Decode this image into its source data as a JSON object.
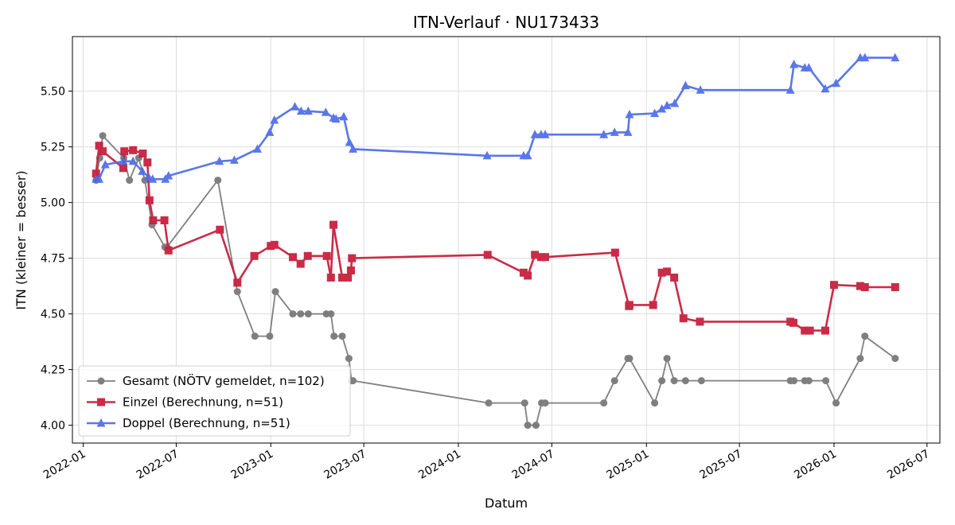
{
  "chart_data": {
    "type": "line",
    "title": "ITN-Verlauf · NU173433",
    "xlabel": "Datum",
    "ylabel": "ITN  (kleiner = besser)",
    "ylim": [
      3.92,
      5.745
    ],
    "xlim": [
      "2021-12-11",
      "2026-07-26"
    ],
    "yticks": [
      "4.00",
      "4.25",
      "4.50",
      "4.75",
      "5.00",
      "5.25",
      "5.50"
    ],
    "xticks": [
      "2022-01",
      "2022-07",
      "2023-01",
      "2023-07",
      "2024-01",
      "2024-07",
      "2025-01",
      "2025-07",
      "2026-01",
      "2026-07"
    ],
    "grid": true,
    "legend_position": "lower-left",
    "series": [
      {
        "name": "Gesamt (NÖTV gemeldet, n=102)",
        "color": "#555555",
        "marker": "circle",
        "points": [
          [
            "2022-01-26",
            5.1
          ],
          [
            "2022-02-02",
            5.2
          ],
          [
            "2022-02-08",
            5.3
          ],
          [
            "2022-03-21",
            5.2
          ],
          [
            "2022-04-01",
            5.1
          ],
          [
            "2022-04-19",
            5.2
          ],
          [
            "2022-05-01",
            5.1
          ],
          [
            "2022-05-15",
            4.9
          ],
          [
            "2022-06-09",
            4.8
          ],
          [
            "2022-06-13",
            4.8
          ],
          [
            "2022-09-20",
            5.1
          ],
          [
            "2022-10-28",
            4.6
          ],
          [
            "2022-12-01",
            4.4
          ],
          [
            "2022-12-30",
            4.4
          ],
          [
            "2023-01-10",
            4.6
          ],
          [
            "2023-02-13",
            4.5
          ],
          [
            "2023-02-28",
            4.5
          ],
          [
            "2023-03-15",
            4.5
          ],
          [
            "2023-04-19",
            4.5
          ],
          [
            "2023-04-28",
            4.5
          ],
          [
            "2023-05-04",
            4.4
          ],
          [
            "2023-05-20",
            4.4
          ],
          [
            "2023-06-02",
            4.3
          ],
          [
            "2023-06-07",
            4.2
          ],
          [
            "2023-06-10",
            4.2
          ],
          [
            "2024-02-29",
            4.1
          ],
          [
            "2024-05-09",
            4.1
          ],
          [
            "2024-05-15",
            4.0
          ],
          [
            "2024-05-31",
            4.0
          ],
          [
            "2024-06-11",
            4.1
          ],
          [
            "2024-06-18",
            4.1
          ],
          [
            "2024-10-10",
            4.1
          ],
          [
            "2024-10-31",
            4.2
          ],
          [
            "2024-11-26",
            4.3
          ],
          [
            "2024-11-29",
            4.3
          ],
          [
            "2025-01-17",
            4.1
          ],
          [
            "2025-01-31",
            4.2
          ],
          [
            "2025-02-10",
            4.3
          ],
          [
            "2025-02-24",
            4.2
          ],
          [
            "2025-03-18",
            4.2
          ],
          [
            "2025-04-18",
            4.2
          ],
          [
            "2025-10-08",
            4.2
          ],
          [
            "2025-10-15",
            4.2
          ],
          [
            "2025-11-05",
            4.2
          ],
          [
            "2025-11-13",
            4.2
          ],
          [
            "2025-12-16",
            4.2
          ],
          [
            "2026-01-05",
            4.1
          ],
          [
            "2026-02-21",
            4.3
          ],
          [
            "2026-03-02",
            4.4
          ],
          [
            "2026-04-30",
            4.3
          ]
        ]
      },
      {
        "name": "Einzel (Berechnung, n=51)",
        "color": "#c8203e",
        "marker": "square",
        "points": [
          [
            "2022-01-26",
            5.13
          ],
          [
            "2022-02-01",
            5.255
          ],
          [
            "2022-02-08",
            5.23
          ],
          [
            "2022-03-20",
            5.155
          ],
          [
            "2022-03-22",
            5.23
          ],
          [
            "2022-04-08",
            5.235
          ],
          [
            "2022-04-27",
            5.22
          ],
          [
            "2022-05-06",
            5.18
          ],
          [
            "2022-05-10",
            5.01
          ],
          [
            "2022-05-17",
            4.92
          ],
          [
            "2022-06-08",
            4.92
          ],
          [
            "2022-06-16",
            4.785
          ],
          [
            "2022-09-24",
            4.878
          ],
          [
            "2022-10-28",
            4.64
          ],
          [
            "2022-11-30",
            4.76
          ],
          [
            "2023-01-01",
            4.805
          ],
          [
            "2023-01-08",
            4.81
          ],
          [
            "2023-02-13",
            4.755
          ],
          [
            "2023-02-28",
            4.725
          ],
          [
            "2023-03-14",
            4.76
          ],
          [
            "2023-04-20",
            4.76
          ],
          [
            "2023-04-28",
            4.663
          ],
          [
            "2023-05-03",
            4.9
          ],
          [
            "2023-05-20",
            4.663
          ],
          [
            "2023-05-31",
            4.663
          ],
          [
            "2023-06-06",
            4.695
          ],
          [
            "2023-06-08",
            4.75
          ],
          [
            "2024-02-27",
            4.765
          ],
          [
            "2024-05-07",
            4.685
          ],
          [
            "2024-05-15",
            4.672
          ],
          [
            "2024-05-29",
            4.765
          ],
          [
            "2024-06-10",
            4.755
          ],
          [
            "2024-06-18",
            4.755
          ],
          [
            "2024-11-01",
            4.775
          ],
          [
            "2024-11-28",
            4.535
          ],
          [
            "2024-11-29",
            4.54
          ],
          [
            "2025-01-14",
            4.54
          ],
          [
            "2025-01-31",
            4.685
          ],
          [
            "2025-02-10",
            4.69
          ],
          [
            "2025-02-24",
            4.663
          ],
          [
            "2025-03-14",
            4.48
          ],
          [
            "2025-04-15",
            4.465
          ],
          [
            "2025-10-08",
            4.465
          ],
          [
            "2025-10-14",
            4.46
          ],
          [
            "2025-11-05",
            4.425
          ],
          [
            "2025-11-15",
            4.425
          ],
          [
            "2025-12-15",
            4.425
          ],
          [
            "2026-01-01",
            4.63
          ],
          [
            "2026-02-21",
            4.625
          ],
          [
            "2026-03-02",
            4.62
          ],
          [
            "2026-04-30",
            4.62
          ]
        ]
      },
      {
        "name": "Doppel (Berechnung, n=51)",
        "color": "#4d6ce8",
        "marker": "triangle",
        "points": [
          [
            "2022-01-26",
            5.105
          ],
          [
            "2022-02-01",
            5.105
          ],
          [
            "2022-02-13",
            5.17
          ],
          [
            "2022-03-20",
            5.185
          ],
          [
            "2022-04-08",
            5.185
          ],
          [
            "2022-04-26",
            5.14
          ],
          [
            "2022-05-08",
            5.115
          ],
          [
            "2022-05-16",
            5.105
          ],
          [
            "2022-06-10",
            5.105
          ],
          [
            "2022-06-16",
            5.12
          ],
          [
            "2022-09-23",
            5.185
          ],
          [
            "2022-10-22",
            5.19
          ],
          [
            "2022-12-06",
            5.24
          ],
          [
            "2022-12-30",
            5.315
          ],
          [
            "2023-01-08",
            5.37
          ],
          [
            "2023-02-17",
            5.43
          ],
          [
            "2023-03-01",
            5.41
          ],
          [
            "2023-03-15",
            5.41
          ],
          [
            "2023-04-18",
            5.405
          ],
          [
            "2023-05-03",
            5.38
          ],
          [
            "2023-05-08",
            5.375
          ],
          [
            "2023-05-23",
            5.385
          ],
          [
            "2023-06-03",
            5.27
          ],
          [
            "2023-06-10",
            5.24
          ],
          [
            "2024-02-26",
            5.21
          ],
          [
            "2024-05-07",
            5.21
          ],
          [
            "2024-05-15",
            5.21
          ],
          [
            "2024-05-29",
            5.305
          ],
          [
            "2024-06-10",
            5.305
          ],
          [
            "2024-06-18",
            5.305
          ],
          [
            "2024-10-10",
            5.305
          ],
          [
            "2024-10-31",
            5.315
          ],
          [
            "2024-11-26",
            5.315
          ],
          [
            "2024-11-29",
            5.395
          ],
          [
            "2025-01-17",
            5.4
          ],
          [
            "2025-01-31",
            5.42
          ],
          [
            "2025-02-10",
            5.435
          ],
          [
            "2025-02-25",
            5.445
          ],
          [
            "2025-03-18",
            5.525
          ],
          [
            "2025-04-16",
            5.505
          ],
          [
            "2025-10-08",
            5.505
          ],
          [
            "2025-10-15",
            5.62
          ],
          [
            "2025-11-05",
            5.605
          ],
          [
            "2025-11-13",
            5.605
          ],
          [
            "2025-12-15",
            5.51
          ],
          [
            "2026-01-05",
            5.535
          ],
          [
            "2026-02-21",
            5.65
          ],
          [
            "2026-03-02",
            5.65
          ],
          [
            "2026-04-30",
            5.65
          ]
        ]
      }
    ]
  }
}
